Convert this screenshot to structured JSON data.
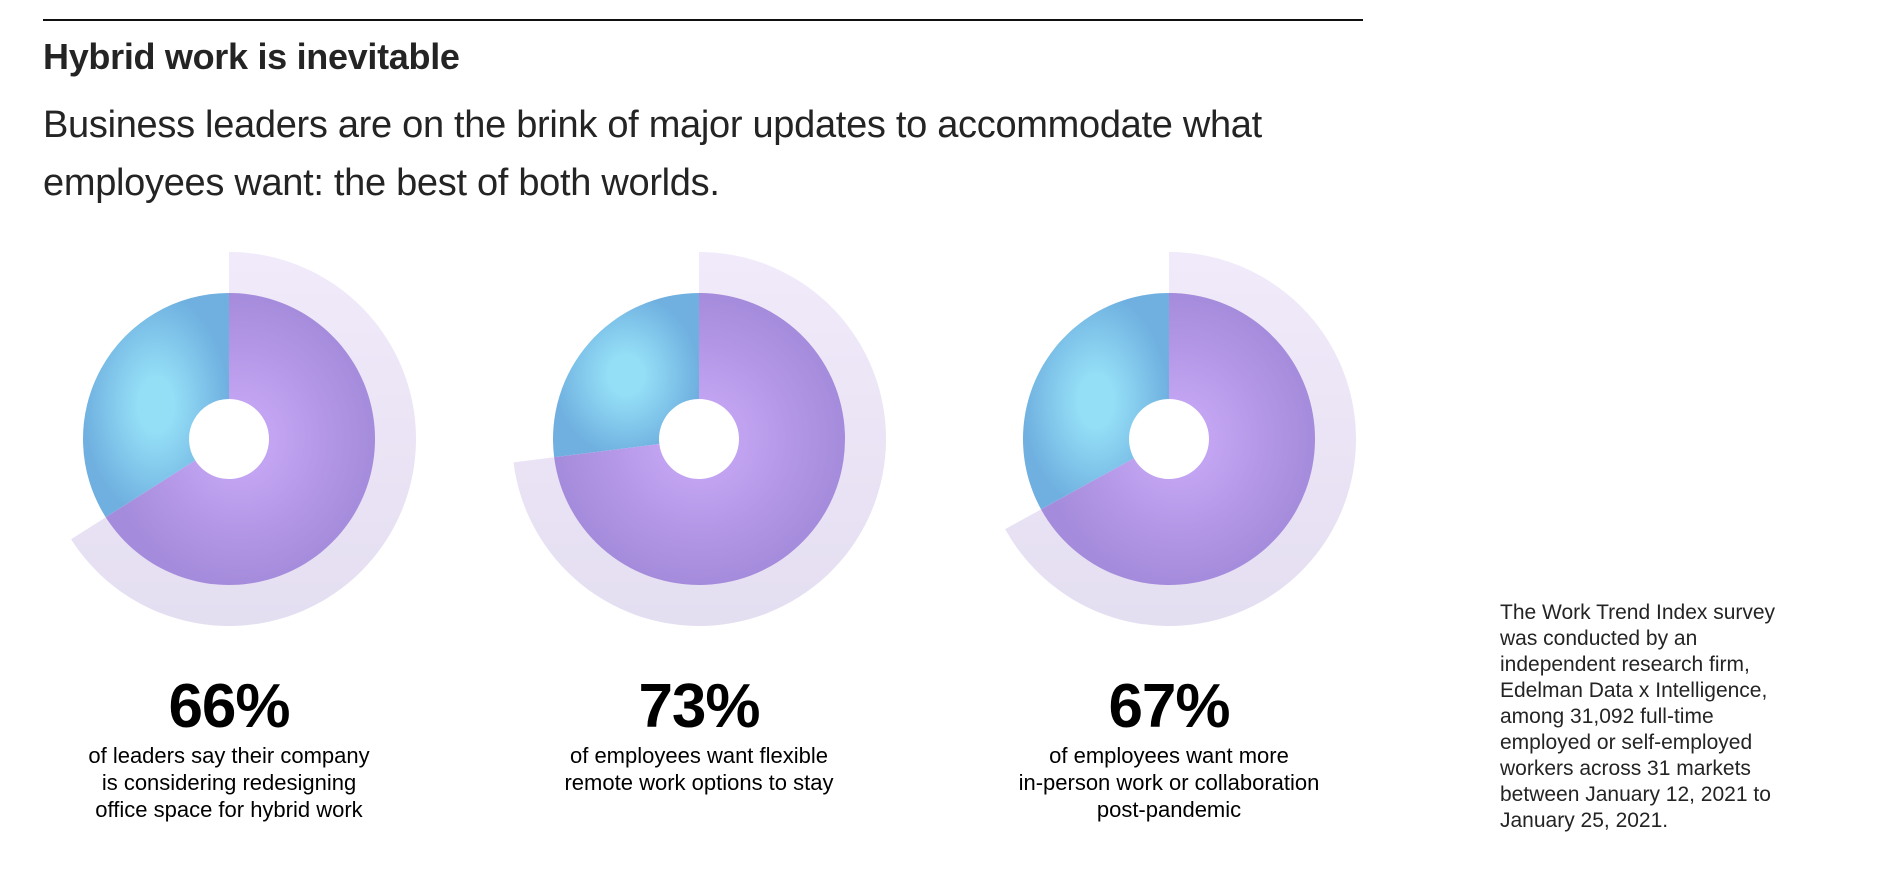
{
  "header": {
    "title": "Hybrid work is inevitable",
    "subtitle": "Business leaders are on the brink of major updates to accommodate what employees want: the best of both worlds."
  },
  "colors": {
    "primary_slice": "#b49ae6",
    "remainder_slice": "#86cdee",
    "outer_band": "#e6e0f3"
  },
  "chart_data": [
    {
      "type": "pie",
      "value_percent": 66,
      "label": "66%",
      "caption_lines": [
        "of leaders say their company",
        "is considering redesigning",
        "office space for hybrid work"
      ]
    },
    {
      "type": "pie",
      "value_percent": 73,
      "label": "73%",
      "caption_lines": [
        "of employees want flexible",
        "remote work options to stay"
      ]
    },
    {
      "type": "pie",
      "value_percent": 67,
      "label": "67%",
      "caption_lines": [
        "of employees want more",
        "in-person work or collaboration",
        "post-pandemic"
      ]
    }
  ],
  "footnote": {
    "lines": [
      "The Work Trend Index survey",
      "was conducted by an",
      "independent research firm,",
      "Edelman Data x Intelligence,",
      "among 31,092 full-time",
      "employed or self-employed",
      "workers across 31 markets",
      "between January 12, 2021 to",
      "January 25, 2021."
    ]
  }
}
